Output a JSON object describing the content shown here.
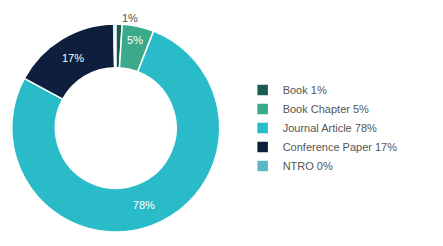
{
  "chart_data": {
    "type": "pie",
    "categories": [
      "Book 1%",
      "Book Chapter 5%",
      "Journal Article 78%",
      "Conference Paper 17%",
      "NTRO 0%"
    ],
    "values": [
      1,
      5,
      78,
      17,
      0.3
    ],
    "value_labels": [
      "1%",
      "5%",
      "78%",
      "17%",
      null
    ],
    "colors": [
      "#1a5c52",
      "#3aaa8a",
      "#29bcc8",
      "#0d1f3c",
      "#5bb8c8"
    ],
    "data_labels": true,
    "legend": "right"
  }
}
